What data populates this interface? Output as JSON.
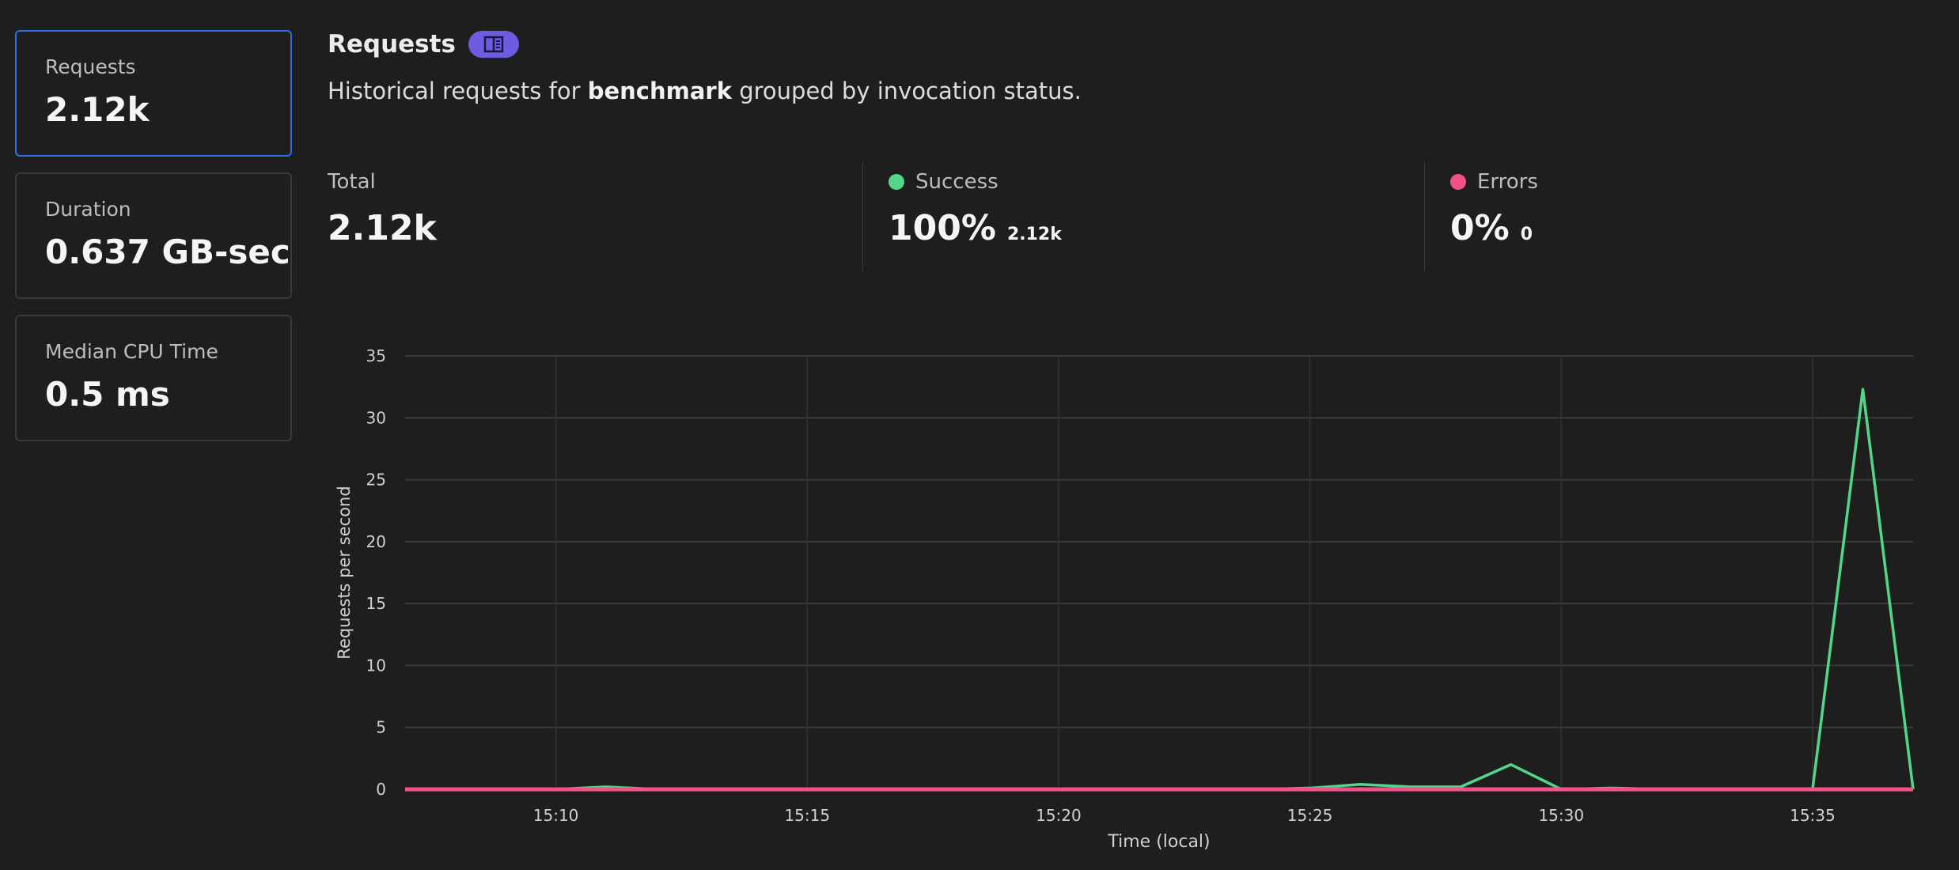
{
  "sidebar": {
    "cards": [
      {
        "label": "Requests",
        "value": "2.12k",
        "active": true
      },
      {
        "label": "Duration",
        "value": "0.637 GB-sec",
        "active": false
      },
      {
        "label": "Median CPU Time",
        "value": "0.5 ms",
        "active": false
      }
    ]
  },
  "header": {
    "title": "Requests",
    "badge_icon": "book-icon",
    "description_prefix": "Historical requests for ",
    "description_bold": "benchmark",
    "description_suffix": " grouped by invocation status."
  },
  "stats": {
    "total": {
      "label": "Total",
      "value": "2.12k"
    },
    "success": {
      "label": "Success",
      "value": "100%",
      "count": "2.12k",
      "color": "#52d68a"
    },
    "errors": {
      "label": "Errors",
      "value": "0%",
      "count": "0",
      "color": "#f25187"
    }
  },
  "colors": {
    "accent": "#2f6fe8",
    "badge": "#6b5ce0",
    "background": "#1e1e1e"
  },
  "chart_data": {
    "type": "line",
    "xlabel": "Time (local)",
    "ylabel": "Requests per second",
    "xlim": [
      "15:07",
      "15:37"
    ],
    "ylim": [
      0,
      35
    ],
    "yticks": [
      0,
      5,
      10,
      15,
      20,
      25,
      30,
      35
    ],
    "xticks": [
      "15:10",
      "15:15",
      "15:20",
      "15:25",
      "15:30",
      "15:35"
    ],
    "grid": true,
    "x": [
      "15:07",
      "15:08",
      "15:09",
      "15:10",
      "15:11",
      "15:12",
      "15:13",
      "15:14",
      "15:15",
      "15:16",
      "15:17",
      "15:18",
      "15:19",
      "15:20",
      "15:21",
      "15:22",
      "15:23",
      "15:24",
      "15:25",
      "15:26",
      "15:27",
      "15:28",
      "15:29",
      "15:30",
      "15:31",
      "15:32",
      "15:33",
      "15:34",
      "15:35",
      "15:36",
      "15:37"
    ],
    "series": [
      {
        "name": "Success",
        "color": "#52d68a",
        "values": [
          0,
          0,
          0,
          0,
          0.2,
          0,
          0,
          0,
          0,
          0,
          0,
          0,
          0,
          0,
          0,
          0,
          0,
          0,
          0.1,
          0.4,
          0.2,
          0.2,
          2,
          0,
          0.1,
          0,
          0,
          0,
          0,
          32.3,
          0
        ]
      },
      {
        "name": "Errors",
        "color": "#f25187",
        "values": [
          0,
          0,
          0,
          0,
          0,
          0,
          0,
          0,
          0,
          0,
          0,
          0,
          0,
          0,
          0,
          0,
          0,
          0,
          0,
          0,
          0,
          0,
          0,
          0,
          0,
          0,
          0,
          0,
          0,
          0,
          0
        ]
      }
    ]
  }
}
